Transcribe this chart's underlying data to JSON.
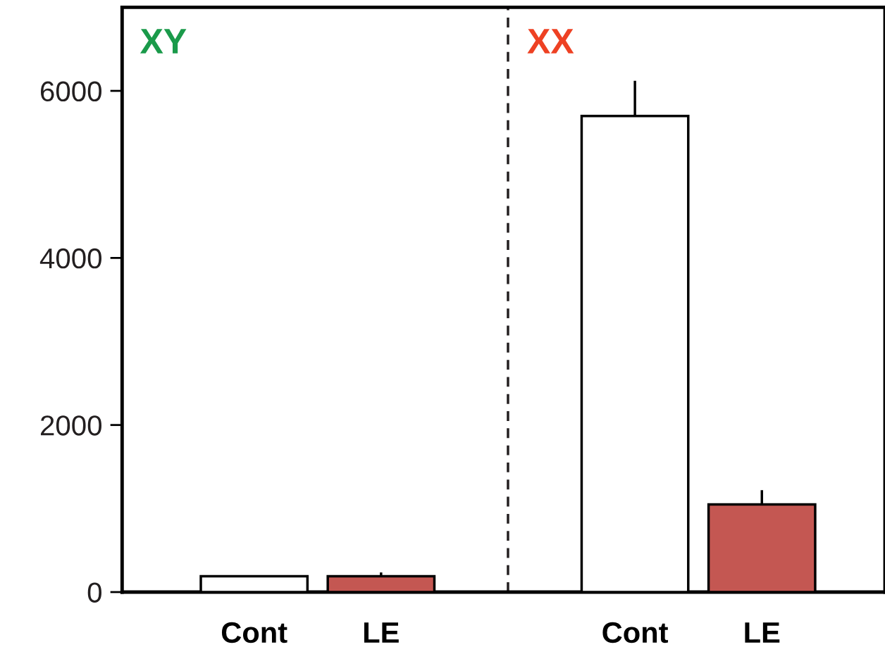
{
  "chart_data": {
    "type": "bar",
    "categories": [
      "Cont",
      "LE",
      null,
      "Cont",
      "LE"
    ],
    "values": [
      190,
      190,
      null,
      5700,
      1050
    ],
    "colors": [
      "#ffffff",
      "#c45752",
      "#ffffff",
      "#ffffff",
      "#c45752"
    ],
    "errors": [
      null,
      [
        190,
        235
      ],
      null,
      [
        5700,
        6120
      ],
      [
        1050,
        1220
      ]
    ],
    "ylim": [
      0,
      7000
    ],
    "yticks": [
      0,
      2000,
      4000,
      6000
    ],
    "annotations": [
      "XY",
      "XX"
    ]
  }
}
